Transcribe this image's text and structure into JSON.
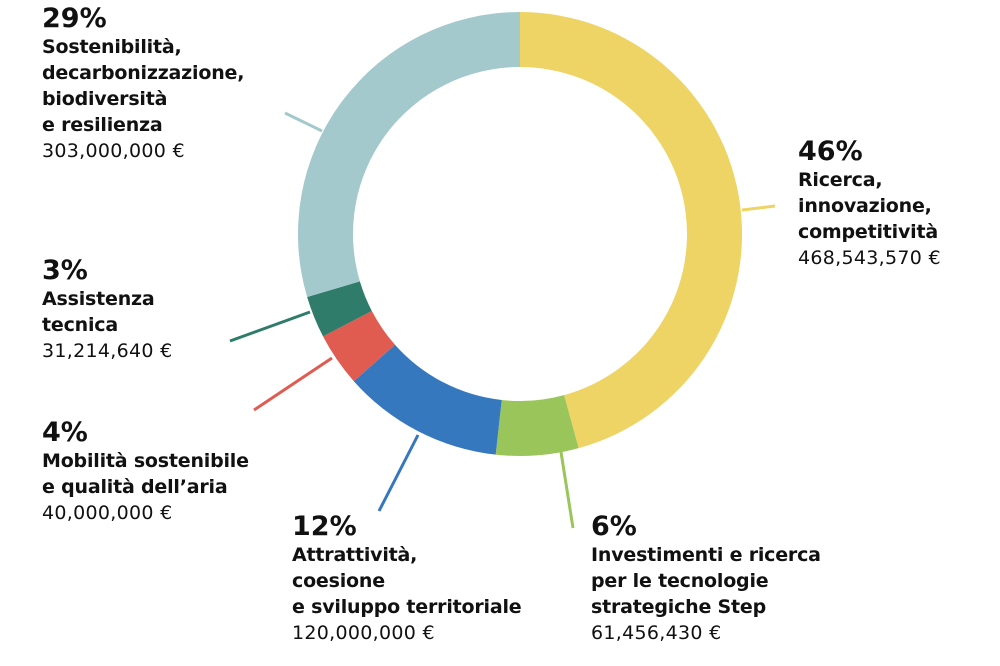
{
  "chart_data": {
    "type": "pie",
    "donut": true,
    "start": "top",
    "direction": "clockwise",
    "slices": [
      {
        "percent_label": "46%",
        "label": "Ricerca,\ninnovazione,\ncompetitività",
        "value": 468543570,
        "value_label": "468,543,570 €",
        "color": "#EED365"
      },
      {
        "percent_label": "6%",
        "label": "Investimenti e ricerca\nper le tecnologie\nstrategiche Step",
        "value": 61456430,
        "value_label": "61,456,430 €",
        "color": "#9AC55A"
      },
      {
        "percent_label": "12%",
        "label": "Attrattività,\ncoesione\ne sviluppo territoriale",
        "value": 120000000,
        "value_label": "120,000,000 €",
        "color": "#3578BE"
      },
      {
        "percent_label": "4%",
        "label": "Mobilità sostenibile\ne qualità dell’aria",
        "value": 40000000,
        "value_label": "40,000,000 €",
        "color": "#E05B50"
      },
      {
        "percent_label": "3%",
        "label": "Assistenza\ntecnica",
        "value": 31214640,
        "value_label": "31,214,640 €",
        "color": "#2F7C6B"
      },
      {
        "percent_label": "29%",
        "label": "Sostenibilità,\ndecarbonizzazione,\nbiodiversità\ne resilienza",
        "value": 303000000,
        "value_label": "303,000,000 €",
        "color": "#A3C9CD"
      }
    ]
  }
}
